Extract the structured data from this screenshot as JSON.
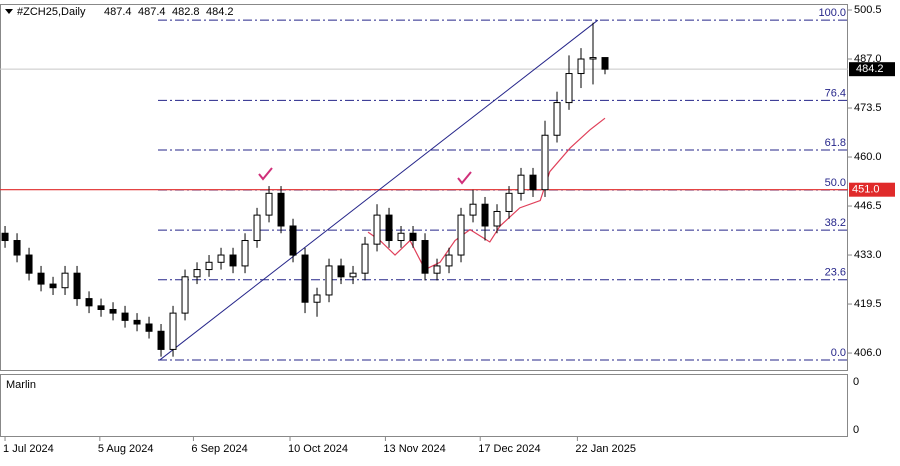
{
  "chart_data": {
    "type": "candlestick",
    "symbol": "#ZCH25,Daily",
    "x": [
      0,
      1,
      2,
      3,
      4,
      5,
      6,
      7,
      8,
      9,
      10,
      11,
      12,
      13,
      14,
      15,
      16,
      17,
      18,
      19,
      20,
      21,
      22,
      23,
      24,
      25,
      26,
      27,
      28,
      29,
      30,
      31,
      32,
      33,
      34,
      35,
      36,
      37,
      38,
      39,
      40,
      41,
      42,
      43,
      44,
      45,
      46,
      47,
      48,
      49,
      50
    ],
    "open": [
      439,
      437,
      433,
      428,
      425,
      424,
      428,
      421,
      419,
      418,
      417,
      415,
      414,
      412,
      407,
      417,
      427,
      429,
      431,
      433,
      430,
      437,
      444,
      450,
      441,
      433,
      420,
      422,
      430,
      427,
      428,
      436,
      444,
      437,
      439,
      437,
      428,
      430,
      433,
      444,
      447,
      441,
      445,
      450,
      455,
      451,
      466,
      475,
      483,
      487,
      487.4
    ],
    "high": [
      441,
      439,
      435,
      430,
      427,
      430,
      430,
      423,
      421,
      420,
      419,
      417,
      416,
      414,
      419,
      429,
      431,
      433,
      435,
      435,
      439,
      446,
      452,
      452,
      443,
      435,
      424,
      432,
      432,
      430,
      438,
      447,
      446,
      441,
      441,
      439,
      432,
      435,
      446,
      451,
      449,
      447,
      452,
      457,
      457,
      470,
      478,
      488,
      490,
      497,
      487.4
    ],
    "low": [
      435,
      431,
      426,
      423,
      422,
      422,
      419,
      417,
      416,
      415,
      413,
      412,
      410,
      405,
      405,
      415,
      425,
      427,
      429,
      428,
      428,
      435,
      442,
      439,
      431,
      417,
      416,
      420,
      425,
      425,
      426,
      434,
      435,
      435,
      435,
      426,
      426,
      428,
      431,
      442,
      437,
      439,
      443,
      448,
      449,
      449,
      464,
      473,
      479,
      480,
      482.8
    ],
    "close": [
      437,
      433,
      428,
      425,
      424,
      428,
      421,
      419,
      418,
      417,
      415,
      414,
      412,
      407,
      417,
      427,
      429,
      431,
      433,
      430,
      437,
      444,
      450,
      441,
      433,
      420,
      422,
      430,
      427,
      428,
      436,
      444,
      437,
      439,
      437,
      428,
      430,
      433,
      444,
      447,
      441,
      445,
      450,
      455,
      451,
      466,
      475,
      483,
      487,
      487.4,
      484.2
    ],
    "xlim": [
      -0.42,
      70.25
    ],
    "xticks": [
      {
        "value": 0,
        "label": "1 Jul 2024"
      },
      {
        "value": 7.9,
        "label": "5 Aug 2024"
      },
      {
        "value": 15.7,
        "label": "6 Sep 2024"
      },
      {
        "value": 23.75,
        "label": "10 Oct 2024"
      },
      {
        "value": 31.7,
        "label": "13 Nov 2024"
      },
      {
        "value": 39.6,
        "label": "17 Dec 2024"
      },
      {
        "value": 47.7,
        "label": "22 Jan 2025"
      }
    ],
    "ylim": [
      401.33,
      501.88
    ],
    "yticks": [
      {
        "value": 500.5,
        "label": "500.5"
      },
      {
        "value": 487,
        "label": "487.0"
      },
      {
        "value": 473.5,
        "label": "473.5"
      },
      {
        "value": 460,
        "label": "460.0"
      },
      {
        "value": 446.5,
        "label": "446.5"
      },
      {
        "value": 433,
        "label": "433.0"
      },
      {
        "value": 419.5,
        "label": "419.5"
      },
      {
        "value": 406,
        "label": "406.0"
      }
    ],
    "fib": {
      "low": 404.1,
      "high": 497.7,
      "color": "#26268a",
      "levels": [
        {
          "value": 0,
          "label": "0.0"
        },
        {
          "value": 23.6,
          "label": "23.6"
        },
        {
          "value": 38.2,
          "label": "38.2"
        },
        {
          "value": 50,
          "label": "50.0"
        },
        {
          "value": 61.8,
          "label": "61.8"
        },
        {
          "value": 76.4,
          "label": "76.4"
        },
        {
          "value": 100,
          "label": "100.0"
        }
      ]
    },
    "trendline": {
      "x": [
        12.9,
        49.4
      ],
      "y": [
        404.1,
        497.7
      ],
      "color": "#26268a"
    },
    "hline": {
      "value": 451,
      "label": "451.0",
      "color": "#e02a2a"
    },
    "indicator": {
      "color": "#e0405a",
      "x": [
        30.25,
        31.25,
        32.5,
        33.75,
        35,
        36.25,
        37.5,
        38.75,
        40.4,
        41.25,
        42.9,
        44.6,
        45.4,
        47.1,
        48.75,
        50
      ],
      "values": [
        439.3,
        437,
        433,
        437,
        429,
        431,
        437,
        440,
        436.6,
        441,
        446,
        448,
        456,
        462.5,
        467.5,
        470.7
      ]
    },
    "panel2": {
      "title": "Marlin",
      "yticks": [
        0,
        0
      ]
    }
  }
}
